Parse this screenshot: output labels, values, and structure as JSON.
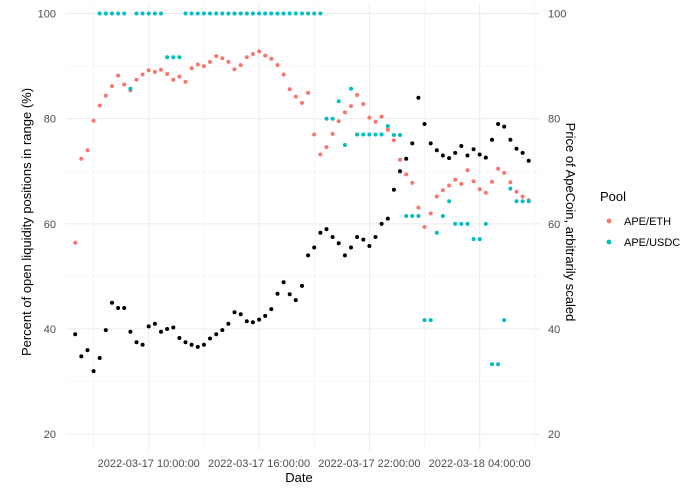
{
  "chart_data": {
    "type": "scatter",
    "xlabel": "Date",
    "ylabel": "Percent of open liquidity positions in range (%)",
    "y2label": "Price of ApeCoin, arbitrarily scaled",
    "legend_title": "Pool",
    "legend_position": "right",
    "grid": true,
    "xlim": [
      "2022-03-17 05:30:00",
      "2022-03-18 07:20:00"
    ],
    "ylim": [
      17,
      102
    ],
    "y2lim": [
      17,
      102
    ],
    "x_ticks": [
      "2022-03-17 10:00:00",
      "2022-03-17 16:00:00",
      "2022-03-17 22:00:00",
      "2022-03-18 04:00:00"
    ],
    "y_ticks": [
      "20",
      "40",
      "60",
      "80",
      "100"
    ],
    "y2_ticks": [
      "20",
      "40",
      "60",
      "80",
      "100"
    ],
    "series": [
      {
        "name": "APE/ETH",
        "color": "#F8766D",
        "x": [
          "2022-03-17 06:00",
          "2022-03-17 06:20",
          "2022-03-17 06:40",
          "2022-03-17 07:00",
          "2022-03-17 07:20",
          "2022-03-17 07:40",
          "2022-03-17 08:00",
          "2022-03-17 08:20",
          "2022-03-17 08:40",
          "2022-03-17 09:00",
          "2022-03-17 09:20",
          "2022-03-17 09:40",
          "2022-03-17 10:00",
          "2022-03-17 10:20",
          "2022-03-17 10:40",
          "2022-03-17 11:00",
          "2022-03-17 11:20",
          "2022-03-17 11:40",
          "2022-03-17 12:00",
          "2022-03-17 12:20",
          "2022-03-17 12:40",
          "2022-03-17 13:00",
          "2022-03-17 13:20",
          "2022-03-17 13:40",
          "2022-03-17 14:00",
          "2022-03-17 14:20",
          "2022-03-17 14:40",
          "2022-03-17 15:00",
          "2022-03-17 15:20",
          "2022-03-17 15:40",
          "2022-03-17 16:00",
          "2022-03-17 16:20",
          "2022-03-17 16:40",
          "2022-03-17 17:00",
          "2022-03-17 17:20",
          "2022-03-17 17:40",
          "2022-03-17 18:00",
          "2022-03-17 18:20",
          "2022-03-17 18:40",
          "2022-03-17 19:00",
          "2022-03-17 19:20",
          "2022-03-17 19:40",
          "2022-03-17 20:00",
          "2022-03-17 20:20",
          "2022-03-17 20:40",
          "2022-03-17 21:00",
          "2022-03-17 21:20",
          "2022-03-17 21:40",
          "2022-03-17 22:00",
          "2022-03-17 22:20",
          "2022-03-17 22:40",
          "2022-03-17 23:00",
          "2022-03-17 23:20",
          "2022-03-17 23:40",
          "2022-03-18 00:00",
          "2022-03-18 00:20",
          "2022-03-18 00:40",
          "2022-03-18 01:00",
          "2022-03-18 01:20",
          "2022-03-18 01:40",
          "2022-03-18 02:00",
          "2022-03-18 02:20",
          "2022-03-18 02:40",
          "2022-03-18 03:00",
          "2022-03-18 03:20",
          "2022-03-18 03:40",
          "2022-03-18 04:00",
          "2022-03-18 04:20",
          "2022-03-18 04:40",
          "2022-03-18 05:00",
          "2022-03-18 05:20",
          "2022-03-18 05:40",
          "2022-03-18 06:00",
          "2022-03-18 06:20",
          "2022-03-18 06:40"
        ],
        "values": [
          56.4,
          72.4,
          74.0,
          79.6,
          82.5,
          84.4,
          86.2,
          88.2,
          86.5,
          85.4,
          87.4,
          88.4,
          89.2,
          88.9,
          89.3,
          88.5,
          87.4,
          88.0,
          87.0,
          89.6,
          90.3,
          90.0,
          90.8,
          91.9,
          91.5,
          90.8,
          89.4,
          90.2,
          91.7,
          92.3,
          92.8,
          92.0,
          91.4,
          90.2,
          88.4,
          85.6,
          84.2,
          83.0,
          84.9,
          77.0,
          73.2,
          74.6,
          77.1,
          79.5,
          81.2,
          82.4,
          84.5,
          82.8,
          80.2,
          79.4,
          80.4,
          77.9,
          75.9,
          72.2,
          69.4,
          67.8,
          63.1,
          59.4,
          62.0,
          65.2,
          66.4,
          67.3,
          68.4,
          67.6,
          70.2,
          68.1,
          66.6,
          65.9,
          68.0,
          70.5,
          69.7,
          67.9,
          66.1,
          65.2,
          64.5
        ]
      },
      {
        "name": "APE/USDC",
        "color": "#00BFC4",
        "x": [
          "2022-03-17 07:20",
          "2022-03-17 07:40",
          "2022-03-17 08:00",
          "2022-03-17 08:20",
          "2022-03-17 08:40",
          "2022-03-17 09:00",
          "2022-03-17 09:20",
          "2022-03-17 09:40",
          "2022-03-17 10:00",
          "2022-03-17 10:20",
          "2022-03-17 10:40",
          "2022-03-17 11:00",
          "2022-03-17 11:20",
          "2022-03-17 11:40",
          "2022-03-17 12:00",
          "2022-03-17 12:20",
          "2022-03-17 12:40",
          "2022-03-17 13:00",
          "2022-03-17 13:20",
          "2022-03-17 13:40",
          "2022-03-17 14:00",
          "2022-03-17 14:20",
          "2022-03-17 14:40",
          "2022-03-17 15:00",
          "2022-03-17 15:20",
          "2022-03-17 15:40",
          "2022-03-17 16:00",
          "2022-03-17 16:20",
          "2022-03-17 16:40",
          "2022-03-17 17:00",
          "2022-03-17 17:20",
          "2022-03-17 17:40",
          "2022-03-17 18:00",
          "2022-03-17 18:20",
          "2022-03-17 18:40",
          "2022-03-17 19:00",
          "2022-03-17 19:20",
          "2022-03-17 19:40",
          "2022-03-17 20:00",
          "2022-03-17 20:20",
          "2022-03-17 20:40",
          "2022-03-17 21:00",
          "2022-03-17 21:20",
          "2022-03-17 21:40",
          "2022-03-17 22:00",
          "2022-03-17 22:20",
          "2022-03-17 22:40",
          "2022-03-17 23:00",
          "2022-03-17 23:20",
          "2022-03-17 23:40",
          "2022-03-18 00:00",
          "2022-03-18 00:20",
          "2022-03-18 00:40",
          "2022-03-18 01:00",
          "2022-03-18 01:20",
          "2022-03-18 01:40",
          "2022-03-18 02:00",
          "2022-03-18 02:20",
          "2022-03-18 02:40",
          "2022-03-18 03:00",
          "2022-03-18 03:20",
          "2022-03-18 03:40",
          "2022-03-18 04:00",
          "2022-03-18 04:20",
          "2022-03-18 04:40",
          "2022-03-18 05:00",
          "2022-03-18 05:20",
          "2022-03-18 05:40",
          "2022-03-18 06:00",
          "2022-03-18 06:20",
          "2022-03-18 06:40"
        ],
        "values": [
          100,
          100,
          100,
          100,
          100,
          85.7,
          100,
          100,
          100,
          100,
          100,
          91.7,
          91.7,
          91.7,
          100,
          100,
          100,
          100,
          100,
          100,
          100,
          100,
          100,
          100,
          100,
          100,
          100,
          100,
          100,
          100,
          100,
          100,
          100,
          100,
          100,
          100,
          100,
          80.0,
          80.0,
          83.3,
          75.0,
          85.7,
          77.0,
          77.0,
          77.0,
          77.0,
          77.0,
          78.6,
          76.9,
          76.9,
          61.5,
          61.5,
          61.5,
          41.7,
          41.7,
          58.3,
          61.5,
          64.3,
          60.0,
          60.0,
          60.0,
          57.1,
          57.1,
          60.0,
          33.3,
          33.3,
          41.7,
          66.7,
          64.3,
          64.3,
          64.3
        ]
      },
      {
        "name": "",
        "color": "#000000",
        "x": [
          "2022-03-17 06:00",
          "2022-03-17 06:20",
          "2022-03-17 06:40",
          "2022-03-17 07:00",
          "2022-03-17 07:20",
          "2022-03-17 07:40",
          "2022-03-17 08:00",
          "2022-03-17 08:20",
          "2022-03-17 08:40",
          "2022-03-17 09:00",
          "2022-03-17 09:20",
          "2022-03-17 09:40",
          "2022-03-17 10:00",
          "2022-03-17 10:20",
          "2022-03-17 10:40",
          "2022-03-17 11:00",
          "2022-03-17 11:20",
          "2022-03-17 11:40",
          "2022-03-17 12:00",
          "2022-03-17 12:20",
          "2022-03-17 12:40",
          "2022-03-17 13:00",
          "2022-03-17 13:20",
          "2022-03-17 13:40",
          "2022-03-17 14:00",
          "2022-03-17 14:20",
          "2022-03-17 14:40",
          "2022-03-17 15:00",
          "2022-03-17 15:20",
          "2022-03-17 15:40",
          "2022-03-17 16:00",
          "2022-03-17 16:20",
          "2022-03-17 16:40",
          "2022-03-17 17:00",
          "2022-03-17 17:20",
          "2022-03-17 17:40",
          "2022-03-17 18:00",
          "2022-03-17 18:20",
          "2022-03-17 18:40",
          "2022-03-17 19:00",
          "2022-03-17 19:20",
          "2022-03-17 19:40",
          "2022-03-17 20:00",
          "2022-03-17 20:20",
          "2022-03-17 20:40",
          "2022-03-17 21:00",
          "2022-03-17 21:20",
          "2022-03-17 21:40",
          "2022-03-17 22:00",
          "2022-03-17 22:20",
          "2022-03-17 22:40",
          "2022-03-17 23:00",
          "2022-03-17 23:20",
          "2022-03-17 23:40",
          "2022-03-18 00:00",
          "2022-03-18 00:20",
          "2022-03-18 00:40",
          "2022-03-18 01:00",
          "2022-03-18 01:20",
          "2022-03-18 01:40",
          "2022-03-18 02:00",
          "2022-03-18 02:20",
          "2022-03-18 02:40",
          "2022-03-18 03:00",
          "2022-03-18 03:20",
          "2022-03-18 03:40",
          "2022-03-18 04:00",
          "2022-03-18 04:20",
          "2022-03-18 04:40",
          "2022-03-18 05:00",
          "2022-03-18 05:20",
          "2022-03-18 05:40",
          "2022-03-18 06:00",
          "2022-03-18 06:20",
          "2022-03-18 06:40"
        ],
        "values": [
          39.0,
          34.8,
          36.0,
          32.0,
          34.5,
          39.8,
          45.0,
          44.0,
          44.0,
          39.5,
          37.5,
          37.0,
          40.5,
          41.0,
          39.5,
          40.0,
          40.3,
          38.3,
          37.5,
          37.0,
          36.6,
          37.0,
          38.2,
          39.0,
          39.8,
          41.0,
          43.2,
          42.8,
          41.5,
          41.3,
          41.8,
          42.5,
          43.8,
          46.7,
          48.9,
          46.6,
          45.5,
          48.2,
          54.0,
          55.5,
          58.3,
          59.0,
          57.5,
          56.3,
          54.0,
          55.5,
          57.5,
          57.0,
          55.8,
          57.5,
          60.0,
          61.0,
          66.5,
          70.0,
          72.4,
          75.3,
          84.0,
          79.0,
          75.3,
          74.0,
          73.0,
          72.5,
          73.5,
          74.8,
          73.0,
          74.2,
          73.2,
          72.6,
          76.0,
          79.0,
          78.5,
          76.0,
          74.3,
          73.5,
          72.0
        ]
      }
    ]
  }
}
